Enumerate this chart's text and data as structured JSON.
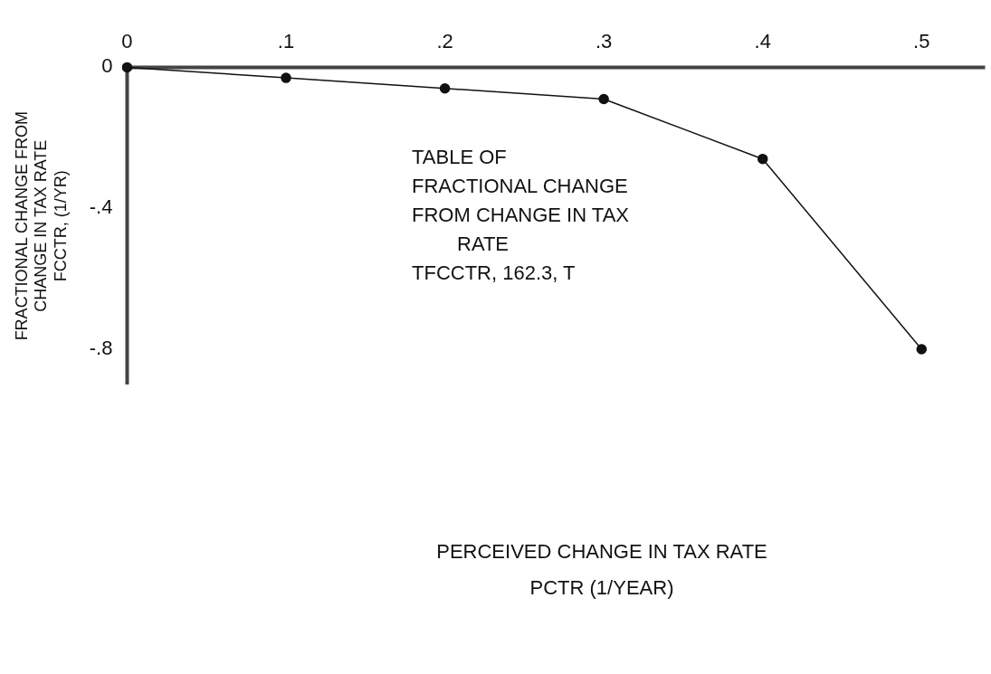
{
  "chart_data": {
    "type": "line",
    "annotations": [
      "TABLE OF\nFRACTIONAL CHANGE\nFROM CHANGE IN TAX\nRATE\nTFCCTR, 162.3, T",
      "PERCEIVED CHANGE IN TAX RATE\nPCTR (1/YEAR)"
    ],
    "ylabel": "FRACTIONAL CHANGE FROM\nCHANGE IN TAX RATE\nFCCTR, (1/YR)",
    "x": [
      0,
      0.1,
      0.2,
      0.3,
      0.4,
      0.5
    ],
    "series": [
      {
        "color": "#111111",
        "values": [
          0,
          -0.03,
          -0.06,
          -0.09,
          -0.26,
          -0.8
        ]
      }
    ],
    "xlim": [
      0,
      0.54
    ],
    "xticks": [
      0,
      {
        "value": 0.1,
        "label": ".1"
      },
      {
        "value": 0.2,
        "label": ".2"
      },
      {
        "value": 0.3,
        "label": ".3"
      },
      {
        "value": 0.4,
        "label": ".4"
      },
      {
        "value": 0.5,
        "label": ".5"
      }
    ],
    "ylim": [
      -0.9,
      0
    ],
    "yticks": [
      0,
      {
        "value": -0.4,
        "label": "-.4"
      },
      {
        "value": -0.8,
        "label": "-.8"
      }
    ],
    "grid": false,
    "legend": false,
    "marker": "circle",
    "line_style": "solid"
  }
}
